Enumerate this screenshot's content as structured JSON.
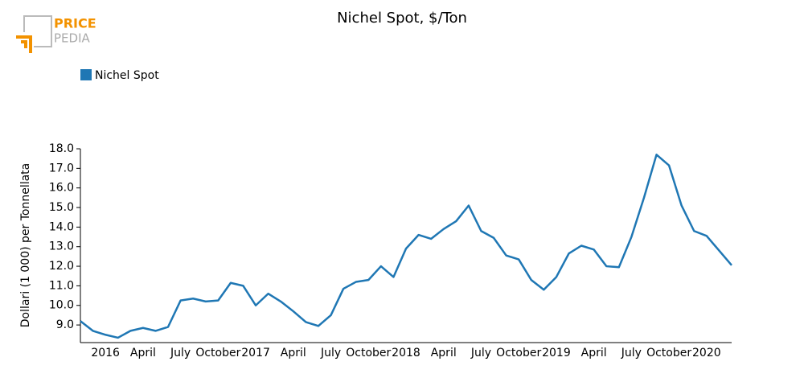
{
  "logo": {
    "line1": "PRICE",
    "line2": "PEDIA"
  },
  "chart_data": {
    "type": "line",
    "title": "Nichel Spot, $/Ton",
    "y_label": "Dollari (1 000) per Tonnellata",
    "categories": [
      null,
      null,
      "2016",
      null,
      null,
      "April",
      null,
      null,
      "July",
      null,
      null,
      "October",
      null,
      null,
      "2017",
      null,
      null,
      "April",
      null,
      null,
      "July",
      null,
      null,
      "October",
      null,
      null,
      "2018",
      null,
      null,
      "April",
      null,
      null,
      "July",
      null,
      null,
      "October",
      null,
      null,
      "2019",
      null,
      null,
      "April",
      null,
      null,
      "July",
      null,
      null,
      "October",
      null,
      null,
      "2020",
      null,
      null
    ],
    "series": [
      {
        "name": "Nichel Spot",
        "color": "#1f77b4",
        "values": [
          9.2,
          8.7,
          8.5,
          8.35,
          8.7,
          8.85,
          8.7,
          8.9,
          10.25,
          10.35,
          10.2,
          10.25,
          11.15,
          11.0,
          10.0,
          10.6,
          10.2,
          9.7,
          9.15,
          8.95,
          9.5,
          10.85,
          11.2,
          11.3,
          12.0,
          11.45,
          12.9,
          13.6,
          13.4,
          13.9,
          14.3,
          15.1,
          13.8,
          13.45,
          12.55,
          12.35,
          11.3,
          10.8,
          11.45,
          12.65,
          13.05,
          12.85,
          12.0,
          11.95,
          13.5,
          15.5,
          17.7,
          17.15,
          15.1,
          13.8,
          13.55,
          12.8,
          12.05
        ]
      }
    ],
    "ylim": [
      8.1,
      18.0
    ],
    "yticks": [
      {
        "value": 9,
        "label": "9.0"
      },
      {
        "value": 10,
        "label": "10.0"
      },
      {
        "value": 11,
        "label": "11.0"
      },
      {
        "value": 12,
        "label": "12.0"
      },
      {
        "value": 13,
        "label": "13.0"
      },
      {
        "value": 14,
        "label": "14.0"
      },
      {
        "value": 15,
        "label": "15.0"
      },
      {
        "value": 16,
        "label": "16.0"
      },
      {
        "value": 17,
        "label": "17.0"
      },
      {
        "value": 18,
        "label": "18.0"
      }
    ],
    "grid": false
  }
}
